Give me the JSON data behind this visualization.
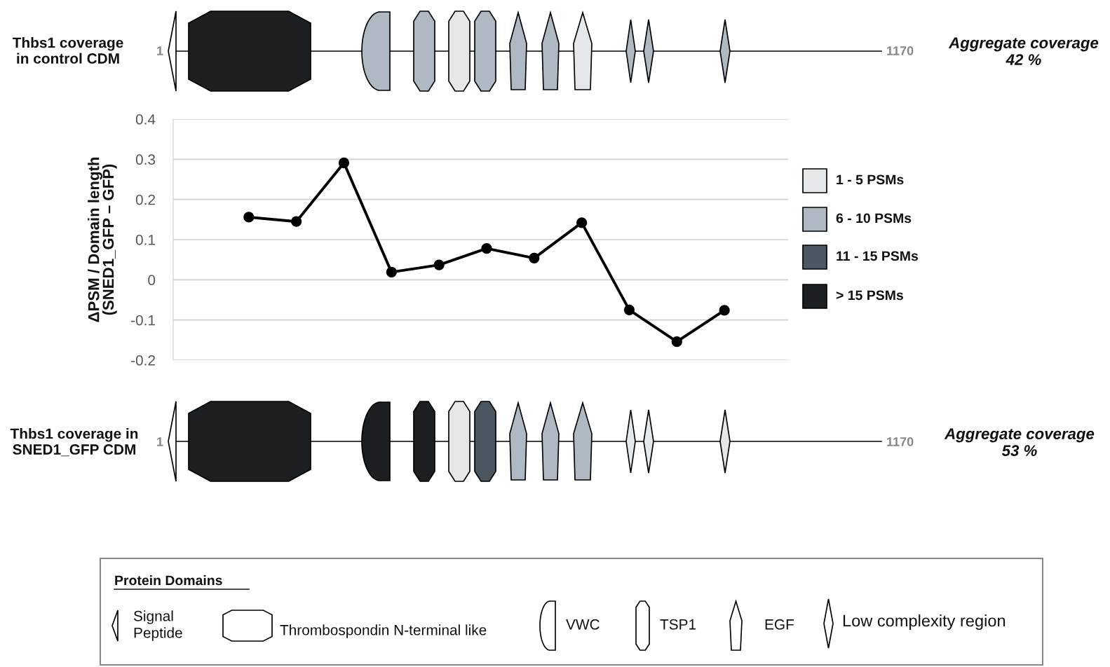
{
  "chart_data": {
    "type": "line",
    "ylabel": "ΔPSM / Domain length\n(SNED1_GFP – GFP)",
    "categories": [
      null,
      null,
      null,
      null,
      null,
      null,
      null,
      null,
      null,
      null,
      null
    ],
    "values": [
      0.156,
      0.145,
      0.291,
      0.019,
      0.037,
      0.078,
      0.054,
      0.142,
      -0.075,
      -0.154,
      -0.076
    ],
    "color": "#000000",
    "marker": "circle",
    "line_style": "solid",
    "ylim": [
      -0.2,
      0.4
    ],
    "yticks": [
      0.4,
      0.3,
      0.2,
      0.1,
      0,
      -0.1,
      -0.2
    ],
    "grid": "y",
    "tick_labels": "y",
    "annotations": [
      "Thbs1 coverage\nin control CDM",
      "1",
      "1170",
      "Aggregate coverage\n42 %",
      "Thbs1 coverage in\nSNED1_GFP CDM",
      "1",
      "1170",
      "Aggregate coverage\n53 %",
      "1 - 5 PSMs",
      "6 - 10 PSMs",
      "11 - 15 PSMs",
      "> 15 PSMs",
      "Protein Domains",
      "Signal\nPeptide",
      "Thrombospondin N-terminal like",
      "VWC",
      "TSP1",
      "EGF",
      "Low complexity region"
    ]
  }
}
